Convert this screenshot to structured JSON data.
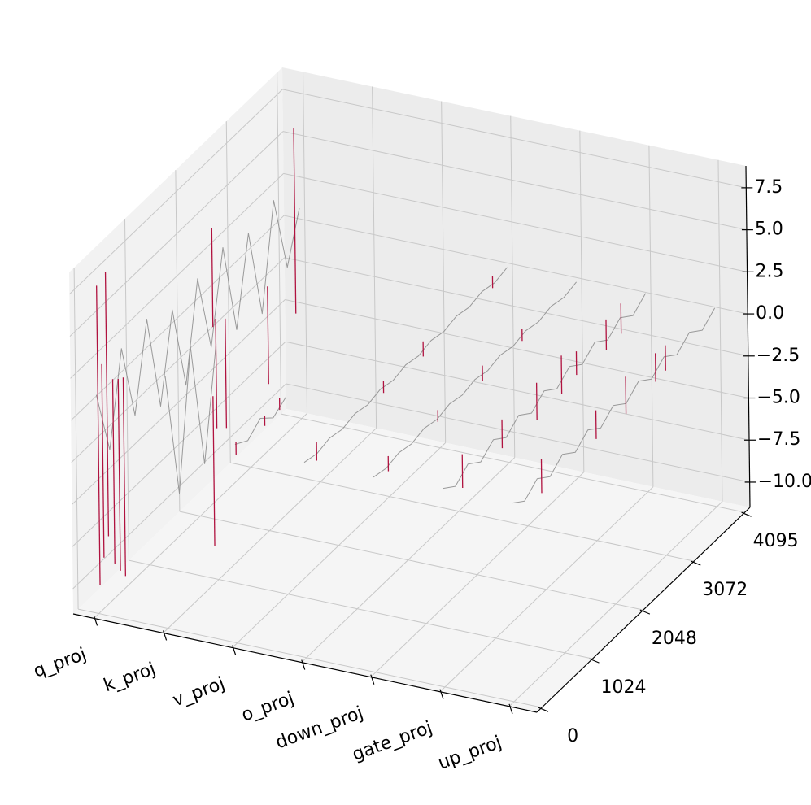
{
  "chart_data": {
    "type": "line3d",
    "categories": [
      "q_proj",
      "k_proj",
      "v_proj",
      "o_proj",
      "down_proj",
      "gate_proj",
      "up_proj"
    ],
    "x": [
      0,
      256,
      512,
      768,
      1024,
      1280,
      1536,
      1792,
      2048,
      2304,
      2560,
      2816,
      3072,
      3328,
      3584,
      3840,
      4095
    ],
    "trace_color": "#8a8a8a",
    "spike_color": "#b0123f",
    "traces": [
      {
        "values": [
          1.5,
          -2.5,
          2.8,
          -1.9,
          3.1,
          -2.8,
          2.2,
          -3.0,
          2.6,
          -2.2,
          3.0,
          -2.6,
          2.4,
          -3.1,
          2.9,
          -1.8,
          1.0
        ],
        "spike_channels": [
          30,
          115,
          210,
          330,
          440,
          540,
          2342,
          2588,
          3440,
          4000
        ],
        "spike_highs": [
          7.9,
          3.0,
          8.2,
          1.5,
          1.2,
          1.0,
          4.8,
          -1.3,
          -1.8,
          6.0
        ],
        "spike_lows": [
          -9.9,
          -8.5,
          -7.5,
          -9.5,
          -10.2,
          -10.8,
          -1.1,
          -7.8,
          -7.6,
          -5.0
        ]
      },
      {
        "values": [
          3.5,
          -4.2,
          3.8,
          -3.9,
          2.5,
          null,
          null,
          null,
          null,
          null,
          null,
          null,
          null,
          null,
          null,
          null,
          null
        ],
        "spike_channels": [
          950,
          1020
        ],
        "spike_highs": [
          -0.4,
          4.0
        ],
        "spike_lows": [
          -9.3,
          -2.5
        ]
      },
      {
        "values": [
          0.3,
          -0.2,
          0.4,
          -0.3,
          0.2,
          null,
          null,
          null,
          null,
          null,
          null,
          null,
          null,
          null,
          null,
          null,
          null
        ],
        "spike_channels": [
          20,
          600,
          900
        ],
        "spike_highs": [
          0.4,
          0.3,
          0.5
        ],
        "spike_lows": [
          -0.4,
          -0.3,
          -0.2
        ]
      },
      {
        "values": [
          0.1,
          -0.1,
          0.1,
          -0.1,
          0.1,
          -0.1,
          0.1,
          -0.1,
          0.1,
          -0.1,
          0.1,
          -0.1,
          0.1,
          -0.1,
          0.1,
          -0.1,
          0.1
        ],
        "spike_channels": [
          250,
          1600,
          2400,
          3800
        ],
        "spike_highs": [
          0.6,
          0.4,
          0.5,
          0.4
        ],
        "spike_lows": [
          -0.5,
          -0.3,
          -0.4,
          -0.3
        ]
      },
      {
        "values": [
          0.1,
          -0.1,
          0.1,
          -0.1,
          0.1,
          -0.1,
          0.1,
          -0.1,
          0.1,
          -0.1,
          0.1,
          -0.1,
          0.1,
          -0.1,
          0.1,
          -0.1,
          0.1
        ],
        "spike_channels": [
          300,
          1300,
          2200,
          3000
        ],
        "spike_highs": [
          0.5,
          0.4,
          0.5,
          0.4
        ],
        "spike_lows": [
          -0.4,
          -0.3,
          -0.4,
          -0.3
        ]
      },
      {
        "values": [
          0.3,
          -0.3,
          0.3,
          -0.3,
          0.3,
          -0.3,
          0.3,
          -0.3,
          0.3,
          -0.3,
          0.3,
          -0.3,
          0.3,
          -0.3,
          0.3,
          -0.3,
          0.3
        ],
        "spike_channels": [
          400,
          1200,
          1900,
          2400,
          2700,
          3300,
          3600
        ],
        "spike_highs": [
          1.2,
          1.0,
          1.2,
          1.4,
          0.8,
          1.0,
          1.1
        ],
        "spike_lows": [
          -0.8,
          -0.7,
          -1.0,
          -0.9,
          -0.6,
          -0.8,
          -0.7
        ]
      },
      {
        "values": [
          0.3,
          -0.3,
          0.3,
          -0.3,
          0.3,
          -0.3,
          0.3,
          -0.3,
          0.3,
          -0.3,
          0.3,
          -0.3,
          0.3,
          -0.3,
          0.3,
          -0.3,
          0.3
        ],
        "spike_channels": [
          600,
          1700,
          2300,
          2900,
          3100
        ],
        "spike_highs": [
          1.2,
          1.0,
          1.3,
          1.0,
          0.9
        ],
        "spike_lows": [
          -0.8,
          -0.7,
          -0.9,
          -0.7,
          -0.6
        ]
      }
    ],
    "xlim": [
      -0.3,
      6.4
    ],
    "ylim": [
      -100,
      4200
    ],
    "yticks": [
      0,
      1024,
      2048,
      3072,
      4095
    ],
    "zlim": [
      -11.5,
      8.8
    ],
    "zticks": [
      {
        "value": -10,
        "label": "−10.0"
      },
      {
        "value": -7.5,
        "label": "−7.5"
      },
      {
        "value": -5,
        "label": "−5.0"
      },
      {
        "value": -2.5,
        "label": "−2.5"
      },
      {
        "value": 0,
        "label": "0.0"
      },
      {
        "value": 2.5,
        "label": "2.5"
      },
      {
        "value": 5,
        "label": "5.0"
      },
      7.5
    ],
    "grid": true
  }
}
